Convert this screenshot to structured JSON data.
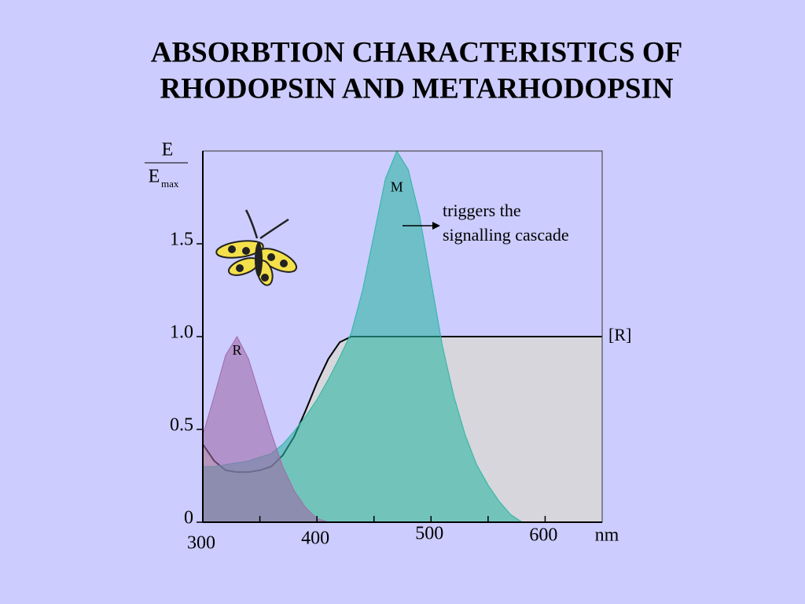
{
  "chart_data": {
    "type": "area",
    "title": [
      "ABSORBTION CHARACTERISTICS OF",
      "RHODOPSIN AND METARHODOPSIN"
    ],
    "ylabel_numerator": "E",
    "ylabel_denominator": "E",
    "ylabel_subscript": "max",
    "xlabel": "nm",
    "x": [
      300,
      310,
      320,
      330,
      340,
      350,
      360,
      370,
      380,
      390,
      400,
      410,
      420,
      430,
      440,
      450,
      460,
      470,
      480,
      490,
      500,
      510,
      520,
      530,
      540,
      550,
      560,
      570,
      580,
      590,
      600,
      610,
      620,
      630,
      640,
      650
    ],
    "series": [
      {
        "name": "[R]",
        "color": "#d6d6dc",
        "values": [
          0.42,
          0.33,
          0.28,
          0.27,
          0.27,
          0.28,
          0.3,
          0.36,
          0.46,
          0.6,
          0.75,
          0.88,
          0.97,
          1.0,
          1.0,
          1.0,
          1.0,
          1.0,
          1.0,
          1.0,
          1.0,
          1.0,
          1.0,
          1.0,
          1.0,
          1.0,
          1.0,
          1.0,
          1.0,
          1.0,
          1.0,
          1.0,
          1.0,
          1.0,
          1.0,
          1.0
        ]
      },
      {
        "name": "M",
        "color": "#2fb5a3",
        "values": [
          0.3,
          0.3,
          0.31,
          0.32,
          0.33,
          0.35,
          0.37,
          0.42,
          0.49,
          0.57,
          0.66,
          0.77,
          0.89,
          1.02,
          1.25,
          1.55,
          1.85,
          2.0,
          1.9,
          1.65,
          1.3,
          0.95,
          0.68,
          0.47,
          0.31,
          0.2,
          0.11,
          0.04,
          0,
          0,
          0,
          0,
          0,
          0,
          0,
          0
        ]
      },
      {
        "name": "R",
        "color": "#a06aa8",
        "values": [
          0.47,
          0.68,
          0.9,
          1.0,
          0.88,
          0.68,
          0.48,
          0.3,
          0.17,
          0.08,
          0.02,
          0,
          0,
          0,
          0,
          0,
          0,
          0,
          0,
          0,
          0,
          0,
          0,
          0,
          0,
          0,
          0,
          0,
          0,
          0,
          0,
          0,
          0,
          0,
          0,
          0
        ]
      }
    ],
    "annotation": [
      "triggers the",
      "signalling cascade"
    ],
    "xlim": [
      300,
      650
    ],
    "xticks": [
      300,
      400,
      500,
      600
    ],
    "xminor_ticks": [
      350,
      450,
      550
    ],
    "ylim": [
      0,
      2
    ],
    "yticks": [
      0,
      0.5,
      {
        "value": 1,
        "label": "1.0"
      },
      1.5
    ]
  }
}
